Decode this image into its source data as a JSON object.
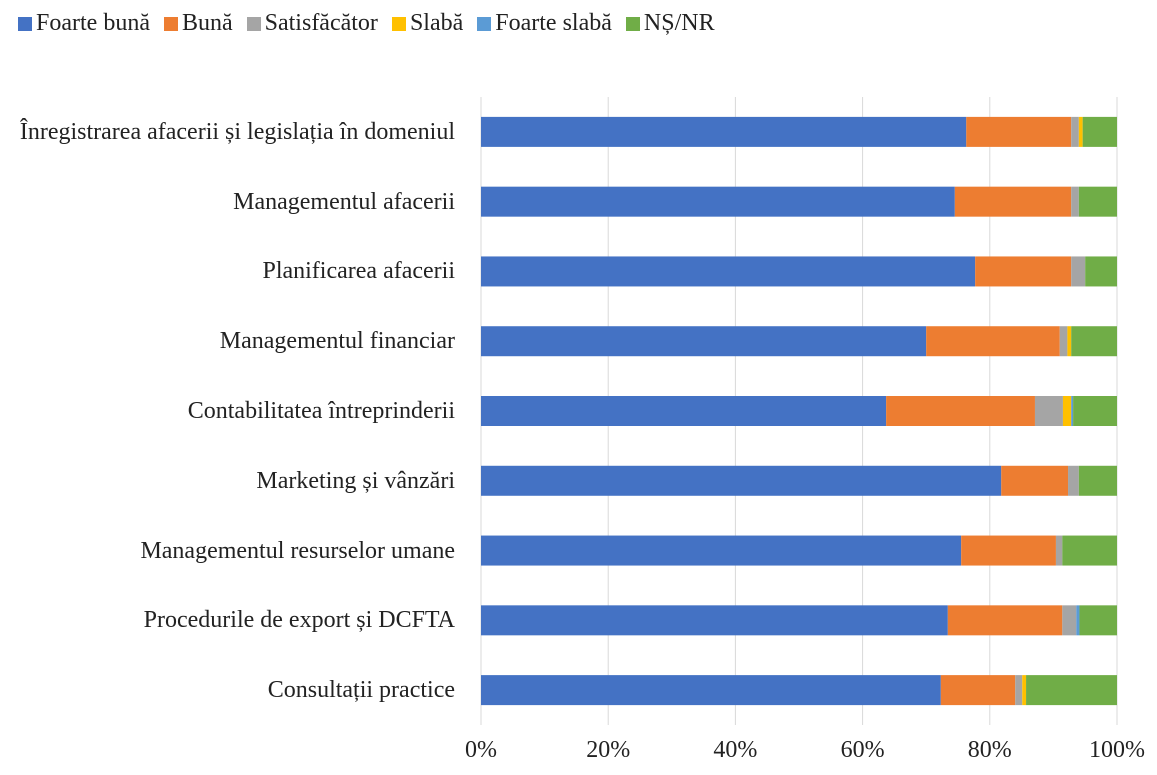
{
  "chart_data": {
    "type": "stacked-barh",
    "categories": [
      "Înregistrarea afacerii și legislația în domeniul",
      "Managementul afacerii",
      "Planificarea afacerii",
      "Managementul financiar",
      "Contabilitatea întreprinderii",
      "Marketing și vânzări",
      "Managementul resurselor umane",
      "Procedurile de export și DCFTA",
      "Consultații practice"
    ],
    "series": [
      {
        "name": "Foarte bună",
        "color": "#4472c4",
        "values": [
          76.3,
          74.5,
          77.7,
          70.0,
          63.7,
          81.8,
          75.5,
          73.4,
          72.3
        ]
      },
      {
        "name": "Bună",
        "color": "#ed7d31",
        "values": [
          16.5,
          18.3,
          15.1,
          21.0,
          23.4,
          10.5,
          14.9,
          18.0,
          11.7
        ]
      },
      {
        "name": "Satisfăcător",
        "color": "#a5a5a5",
        "values": [
          1.2,
          1.2,
          2.2,
          1.2,
          4.4,
          1.7,
          1.0,
          2.2,
          1.1
        ]
      },
      {
        "name": "Slabă",
        "color": "#ffc000",
        "values": [
          0.6,
          0,
          0,
          0.6,
          1.3,
          0,
          0,
          0,
          0.6
        ]
      },
      {
        "name": "Foarte slabă",
        "color": "#5b9bd5",
        "values": [
          0,
          0,
          0,
          0,
          0.3,
          0,
          0,
          0.5,
          0
        ]
      },
      {
        "name": "NȘ/NR",
        "color": "#70ad47",
        "values": [
          5.4,
          6.0,
          5.0,
          7.2,
          6.9,
          6.0,
          8.6,
          5.9,
          14.3
        ]
      }
    ],
    "xlim": [
      0,
      100
    ],
    "xticks": [
      {
        "value": 0,
        "label": "0%"
      },
      {
        "value": 20,
        "label": "20%"
      },
      {
        "value": 40,
        "label": "40%"
      },
      {
        "value": 60,
        "label": "60%"
      },
      {
        "value": 80,
        "label": "80%"
      },
      {
        "value": 100,
        "label": "100%"
      }
    ],
    "grid": true,
    "legend": "top"
  }
}
